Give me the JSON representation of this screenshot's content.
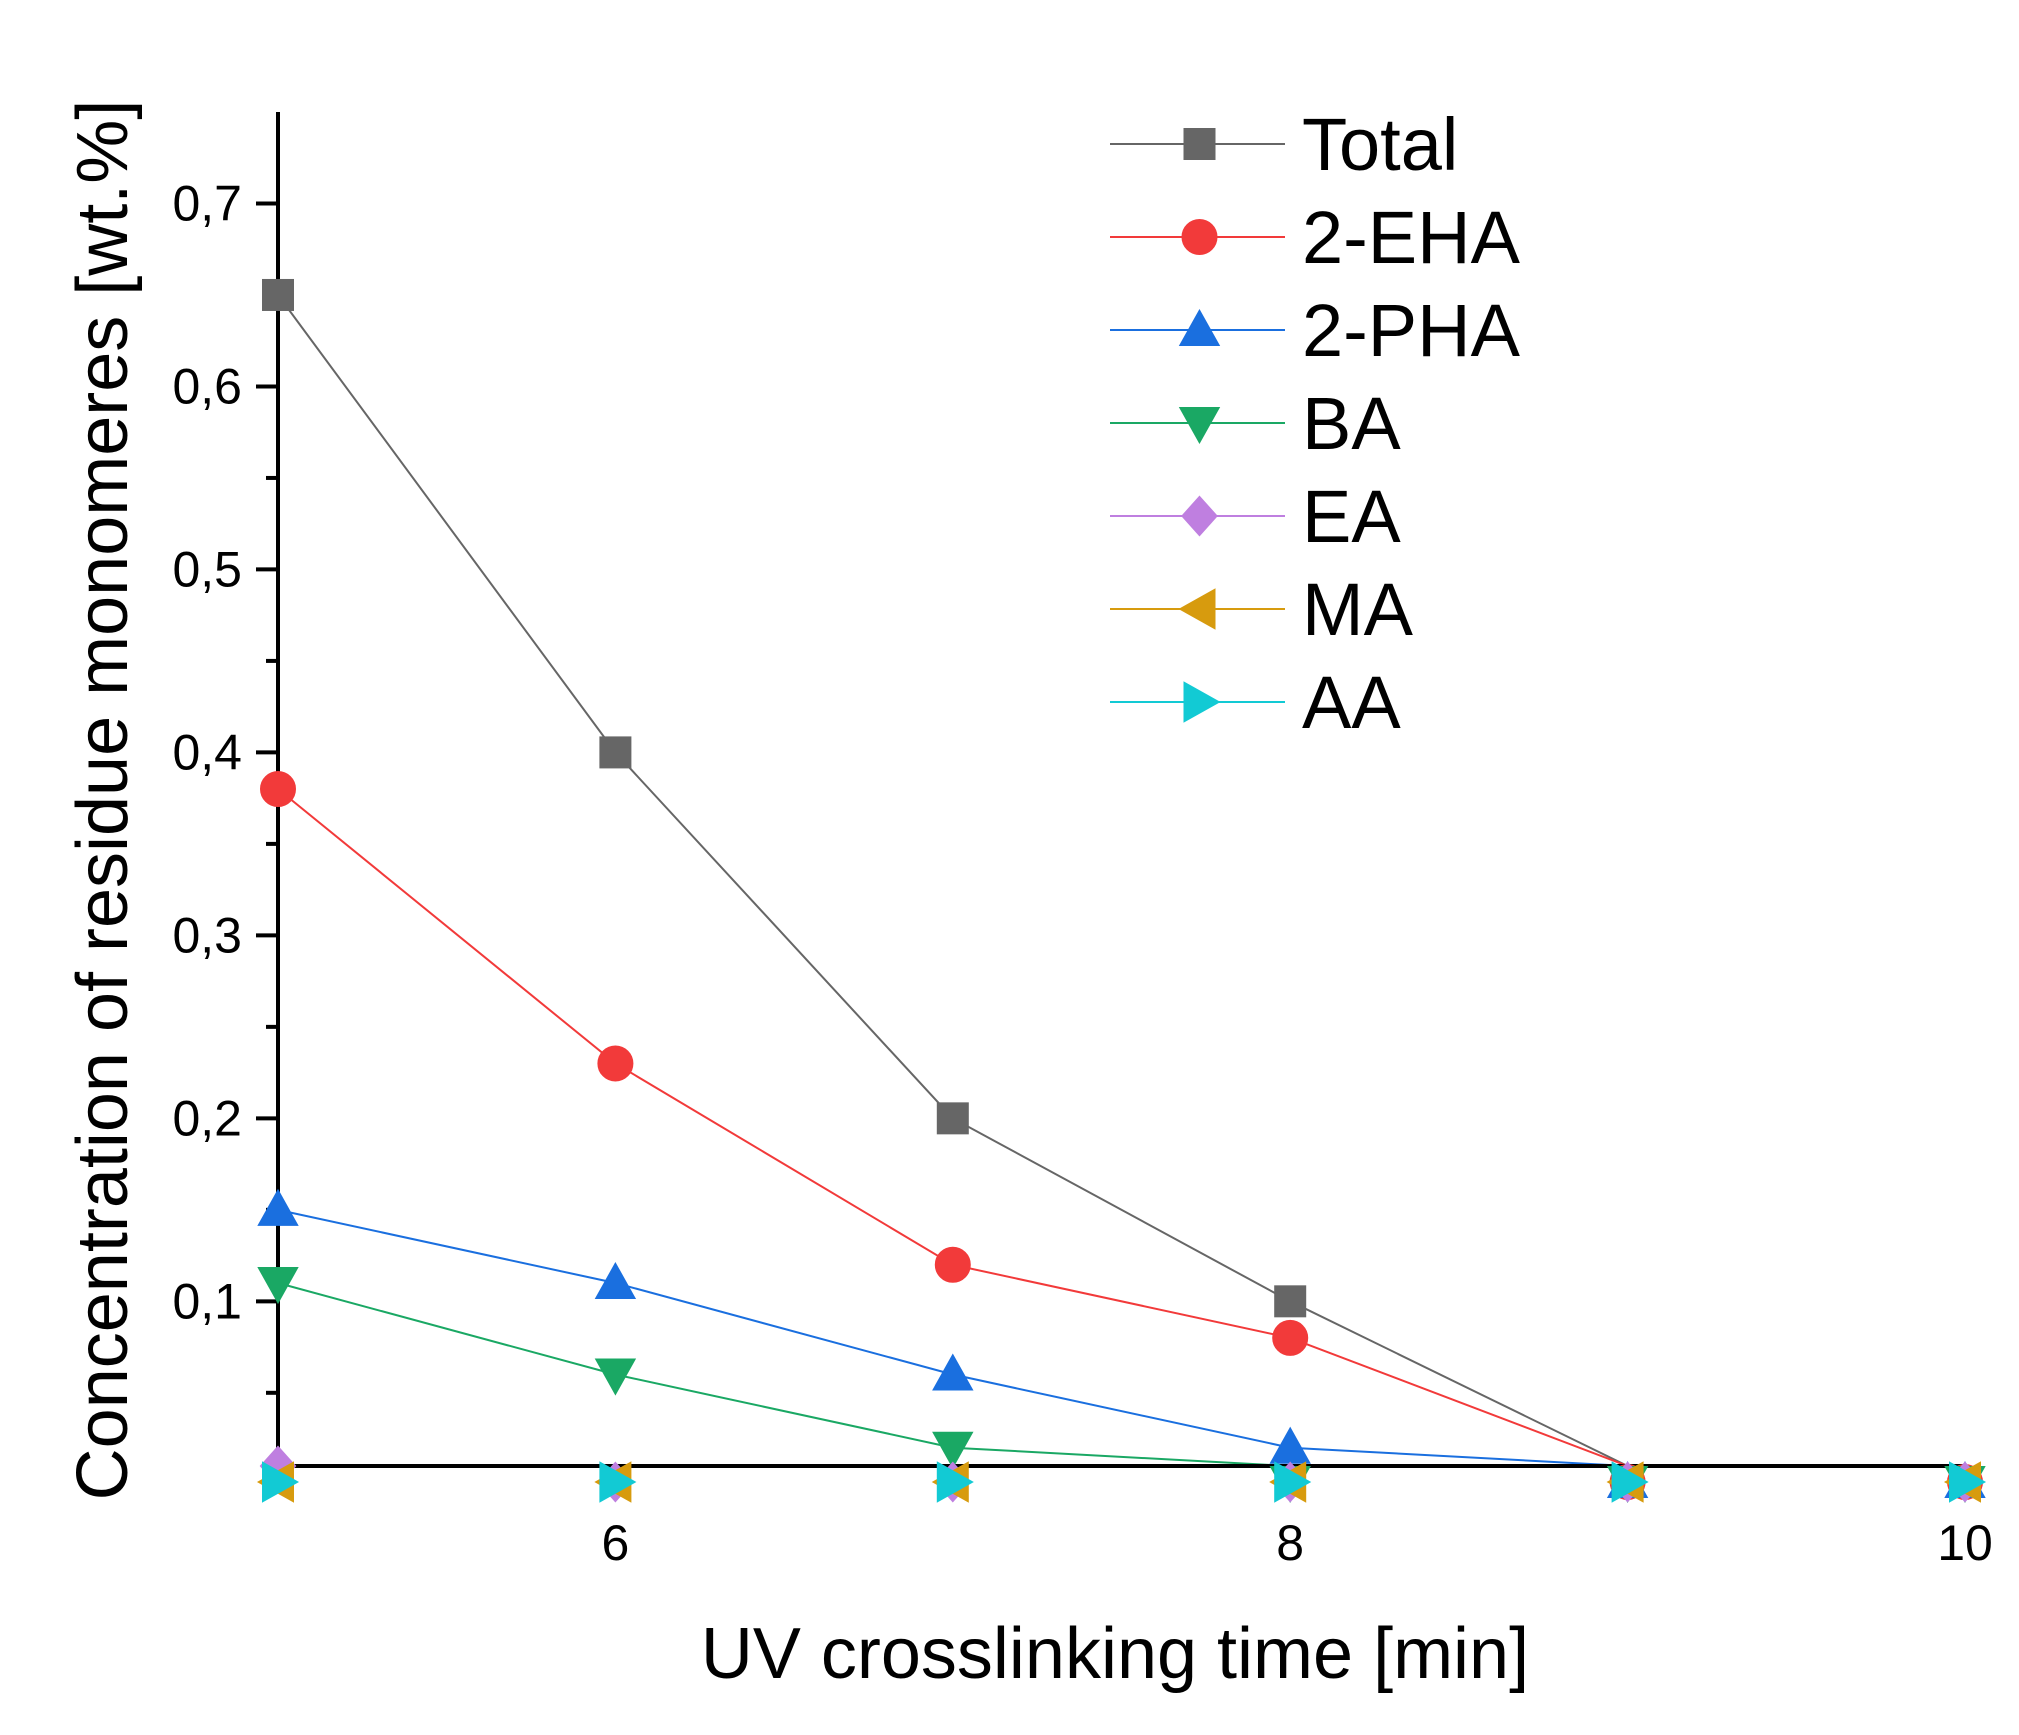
{
  "chart_data": {
    "type": "line",
    "title": "",
    "xlabel": "UV crosslinking time [min]",
    "ylabel": "Concentration of residue monomeres [wt.%]",
    "xlim": [
      5,
      10
    ],
    "ylim": [
      0.01,
      0.75
    ],
    "grid": false,
    "legend_position": "top-right",
    "x_ticks": [
      {
        "value": 6,
        "label": "6"
      },
      {
        "value": 8,
        "label": "8"
      },
      {
        "value": 10,
        "label": "10"
      }
    ],
    "y_ticks": [
      {
        "value": 0.1,
        "label": "0,1"
      },
      {
        "value": 0.2,
        "label": "0,2"
      },
      {
        "value": 0.3,
        "label": "0,3"
      },
      {
        "value": 0.4,
        "label": "0,4"
      },
      {
        "value": 0.5,
        "label": "0,5"
      },
      {
        "value": 0.6,
        "label": "0,6"
      },
      {
        "value": 0.7,
        "label": "0,7"
      }
    ],
    "x": [
      5,
      6,
      7,
      8,
      9,
      10
    ],
    "series": [
      {
        "name": "Total",
        "color": "#666666",
        "marker": "square",
        "values": [
          0.65,
          0.4,
          0.2,
          0.1,
          0.0,
          0.0
        ]
      },
      {
        "name": "2-EHA",
        "color": "#f23a3a",
        "marker": "circle",
        "values": [
          0.38,
          0.23,
          0.12,
          0.08,
          0.0,
          0.0
        ]
      },
      {
        "name": "2-PHA",
        "color": "#1a6fdf",
        "marker": "triangle-up",
        "values": [
          0.15,
          0.11,
          0.06,
          0.02,
          0.0,
          0.0
        ]
      },
      {
        "name": "BA",
        "color": "#1aa864",
        "marker": "triangle-down",
        "values": [
          0.11,
          0.06,
          0.02,
          0.0,
          0.0,
          0.0
        ]
      },
      {
        "name": "EA",
        "color": "#bf7fe0",
        "marker": "diamond",
        "values": [
          0.01,
          0.0,
          0.0,
          0.0,
          0.0,
          0.0
        ]
      },
      {
        "name": "MA",
        "color": "#d79b0e",
        "marker": "triangle-left",
        "values": [
          0.0,
          0.0,
          0.0,
          0.0,
          0.0,
          0.0
        ]
      },
      {
        "name": "AA",
        "color": "#12cad4",
        "marker": "triangle-right",
        "values": [
          0.0,
          0.0,
          0.0,
          0.0,
          0.0,
          0.0
        ]
      }
    ]
  }
}
